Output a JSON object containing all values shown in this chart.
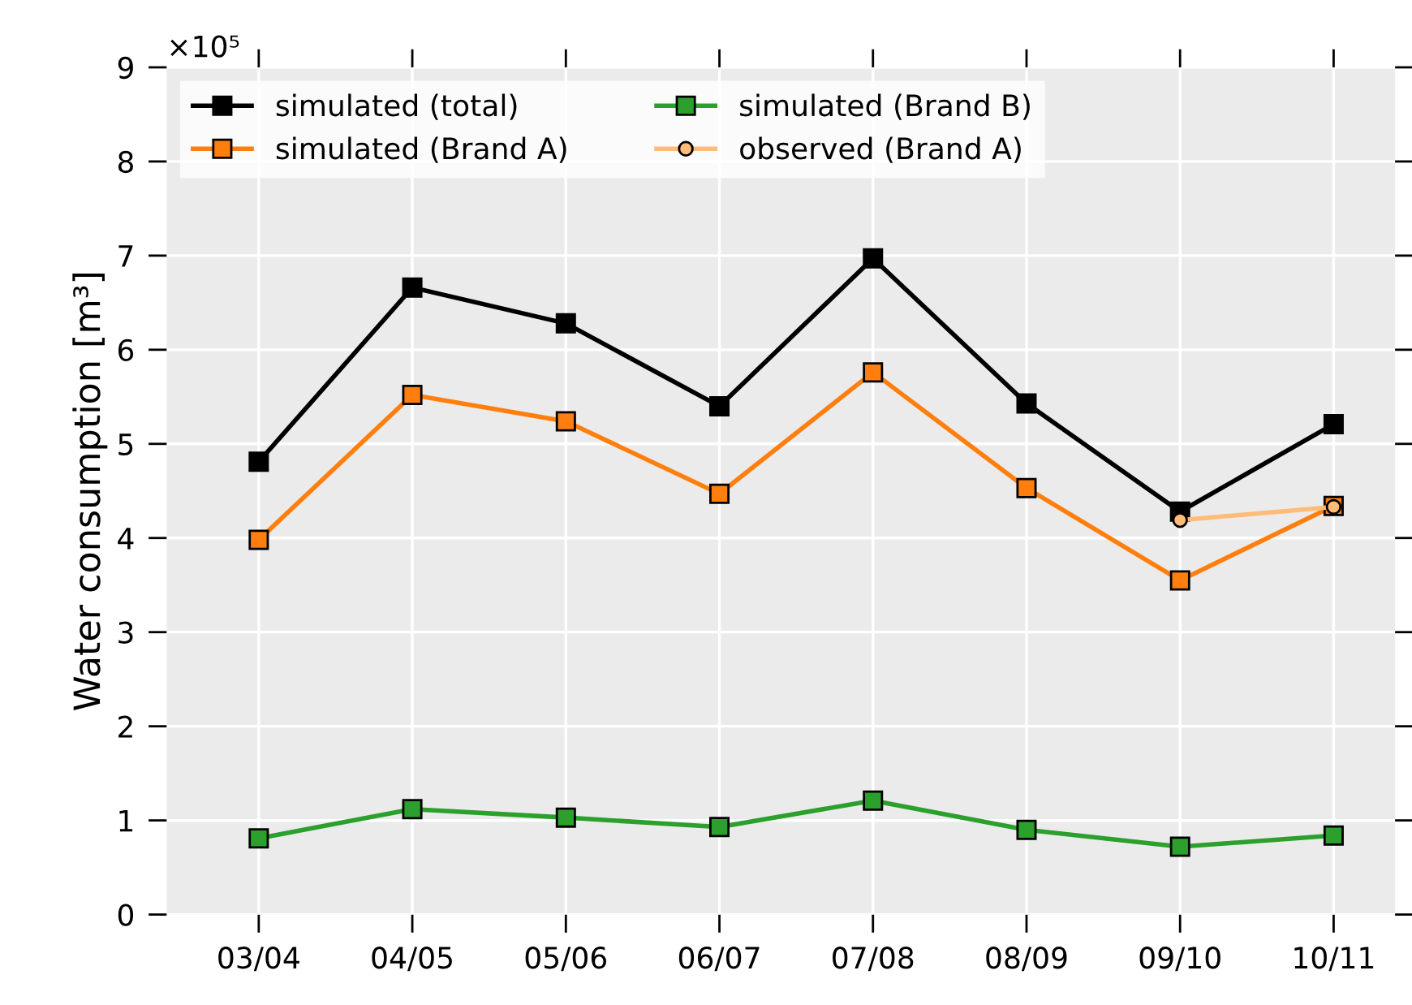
{
  "chart_data": {
    "type": "line",
    "ylabel": "Water consumption [m³]",
    "annotations": [
      "×10⁵"
    ],
    "categories": [
      "03/04",
      "04/05",
      "05/06",
      "06/07",
      "07/08",
      "08/09",
      "09/10",
      "10/11"
    ],
    "series": [
      {
        "name": "simulated (total)",
        "color": "#000000",
        "marker": "square",
        "values": [
          4.81,
          6.66,
          6.28,
          5.4,
          6.97,
          5.43,
          4.28,
          5.21
        ]
      },
      {
        "name": "simulated (Brand A)",
        "color": "#ff7f0e",
        "marker": "square",
        "values": [
          3.98,
          5.52,
          5.24,
          4.47,
          5.76,
          4.53,
          3.55,
          4.34
        ]
      },
      {
        "name": "simulated (Brand B)",
        "color": "#2ca02c",
        "marker": "square",
        "values": [
          0.81,
          1.12,
          1.03,
          0.93,
          1.21,
          0.9,
          0.72,
          0.84
        ]
      },
      {
        "name": "observed (Brand A)",
        "color": "#ffbb78",
        "marker": "circle",
        "values": [
          null,
          null,
          null,
          null,
          null,
          null,
          4.19,
          4.33
        ]
      }
    ],
    "ylim": [
      0,
      9
    ],
    "yticks": [
      0,
      1,
      2,
      3,
      4,
      5,
      6,
      7,
      8,
      9
    ],
    "grid": true,
    "legend": "top left",
    "line_style": "solid"
  }
}
